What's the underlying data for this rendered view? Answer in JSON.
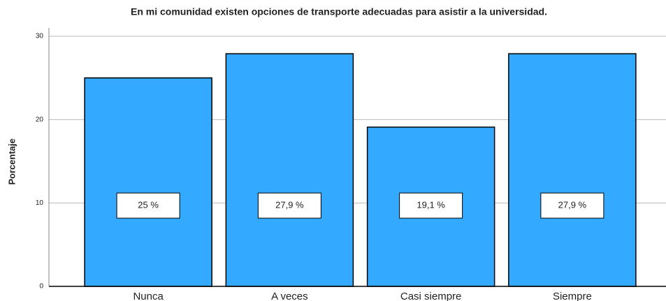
{
  "chart_data": {
    "type": "bar",
    "title": "En mi comunidad existen opciones de transporte adecuadas para asistir a la universidad.",
    "y_label": "Porcentaje",
    "categories": [
      "Nunca",
      "A veces",
      "Casi siempre",
      "Siempre"
    ],
    "values": [
      25,
      27.9,
      19.1,
      27.9
    ],
    "value_labels": [
      "25 %",
      "27,9 %",
      "19,1 %",
      "27,9 %"
    ],
    "color": "#33aaff",
    "ylim": [
      0,
      31
    ],
    "yticks": [
      0,
      10,
      20,
      30
    ],
    "grid": true
  }
}
